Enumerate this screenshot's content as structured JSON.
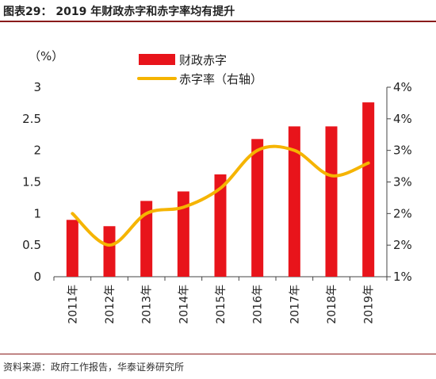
{
  "header": {
    "title": "图表29： 2019 年财政赤字和赤字率均有提升"
  },
  "footer": {
    "source": "资料来源：政府工作报告，华泰证券研究所"
  },
  "chart_data": {
    "type": "bar+line",
    "categories": [
      "2011年",
      "2012年",
      "2013年",
      "2014年",
      "2015年",
      "2016年",
      "2017年",
      "2018年",
      "2019年"
    ],
    "series": [
      {
        "name": "财政赤字",
        "type": "bar",
        "axis": "left",
        "color": "#e8141b",
        "values": [
          0.9,
          0.8,
          1.2,
          1.35,
          1.62,
          2.18,
          2.38,
          2.38,
          2.76
        ]
      },
      {
        "name": "赤字率（右轴）",
        "type": "line",
        "axis": "right",
        "color": "#f5b400",
        "values": [
          2.0,
          1.5,
          2.0,
          2.1,
          2.4,
          3.0,
          3.0,
          2.6,
          2.8
        ]
      }
    ],
    "y_left": {
      "label": "（%）",
      "min": 0,
      "max": 3,
      "ticks": [
        0,
        0.5,
        1,
        1.5,
        2,
        2.5,
        3
      ],
      "tick_labels": [
        "0",
        "0.5",
        "1",
        "1.5",
        "2",
        "2.5",
        "3"
      ]
    },
    "y_right": {
      "min": 1,
      "max": 4,
      "tick_values": [
        1,
        1.5,
        2,
        2.5,
        3,
        3.5,
        4
      ],
      "tick_labels": [
        "1%",
        "2%",
        "2%",
        "3%",
        "3%",
        "4%",
        "4%"
      ]
    },
    "legend": {
      "placement": "top-center"
    },
    "grid": false
  }
}
